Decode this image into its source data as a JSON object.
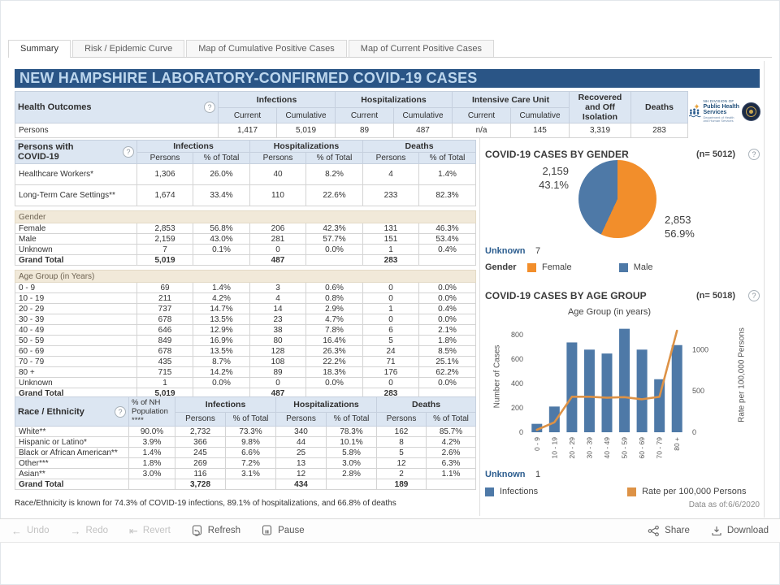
{
  "tabs": {
    "items": [
      {
        "label": "Summary"
      },
      {
        "label": "Risk / Epidemic Curve"
      },
      {
        "label": "Map of Cumulative Positive Cases"
      },
      {
        "label": "Map of Current Positive Cases"
      }
    ],
    "active_index": 0
  },
  "title": "NEW HAMPSHIRE LABORATORY-CONFIRMED COVID-19 CASES",
  "health_outcomes": {
    "title": "Health Outcomes",
    "groups": [
      "Infections",
      "Hospitalizations",
      "Intensive Care Unit"
    ],
    "current_label": "Current",
    "cumulative_label": "Cumulative",
    "recovered_label": "Recovered and Off Isolation",
    "deaths_label": "Deaths",
    "rows": [
      {
        "v": "row",
        "cells": [
          "Persons",
          "1,417",
          "5,019",
          "89",
          "487",
          "n/a",
          "145",
          "3,319",
          "283"
        ]
      }
    ]
  },
  "logo": {
    "line1": "NH DIVISION OF",
    "line2": "Public Health Services",
    "line3": "Department of Health and Human Services"
  },
  "persons_table": {
    "title": "Persons with COVID-19",
    "groups": [
      "Infections",
      "Hospitalizations",
      "Deaths"
    ],
    "persons_label": "Persons",
    "pct_label": "% of Total",
    "rows": [
      {
        "v": "tall",
        "cells": [
          "Healthcare Workers*",
          "1,306",
          "26.0%",
          "40",
          "8.2%",
          "4",
          "1.4%"
        ]
      },
      {
        "v": "tall",
        "cells": [
          "Long-Term Care Settings**",
          "1,674",
          "33.4%",
          "110",
          "22.6%",
          "233",
          "82.3%"
        ]
      },
      {
        "v": "gap",
        "cells": [
          ""
        ]
      },
      {
        "v": "band",
        "cells": [
          "Gender"
        ]
      },
      {
        "v": "row",
        "cells": [
          "Female",
          "2,853",
          "56.8%",
          "206",
          "42.3%",
          "131",
          "46.3%"
        ]
      },
      {
        "v": "row",
        "cells": [
          "Male",
          "2,159",
          "43.0%",
          "281",
          "57.7%",
          "151",
          "53.4%"
        ]
      },
      {
        "v": "row",
        "cells": [
          "Unknown",
          "7",
          "0.1%",
          "0",
          "0.0%",
          "1",
          "0.4%"
        ]
      },
      {
        "v": "total",
        "cells": [
          "Grand Total",
          "5,019",
          "",
          "487",
          "",
          "283",
          ""
        ]
      },
      {
        "v": "gap",
        "cells": [
          ""
        ]
      },
      {
        "v": "band",
        "cells": [
          "Age Group (in Years)"
        ]
      },
      {
        "v": "row",
        "cells": [
          "0 - 9",
          "69",
          "1.4%",
          "3",
          "0.6%",
          "0",
          "0.0%"
        ]
      },
      {
        "v": "row",
        "cells": [
          "10 - 19",
          "211",
          "4.2%",
          "4",
          "0.8%",
          "0",
          "0.0%"
        ]
      },
      {
        "v": "row",
        "cells": [
          "20 - 29",
          "737",
          "14.7%",
          "14",
          "2.9%",
          "1",
          "0.4%"
        ]
      },
      {
        "v": "row",
        "cells": [
          "30 - 39",
          "678",
          "13.5%",
          "23",
          "4.7%",
          "0",
          "0.0%"
        ]
      },
      {
        "v": "row",
        "cells": [
          "40 - 49",
          "646",
          "12.9%",
          "38",
          "7.8%",
          "6",
          "2.1%"
        ]
      },
      {
        "v": "row",
        "cells": [
          "50 - 59",
          "849",
          "16.9%",
          "80",
          "16.4%",
          "5",
          "1.8%"
        ]
      },
      {
        "v": "row",
        "cells": [
          "60 - 69",
          "678",
          "13.5%",
          "128",
          "26.3%",
          "24",
          "8.5%"
        ]
      },
      {
        "v": "row",
        "cells": [
          "70 - 79",
          "435",
          "8.7%",
          "108",
          "22.2%",
          "71",
          "25.1%"
        ]
      },
      {
        "v": "row",
        "cells": [
          "80 +",
          "715",
          "14.2%",
          "89",
          "18.3%",
          "176",
          "62.2%"
        ]
      },
      {
        "v": "row",
        "cells": [
          "Unknown",
          "1",
          "0.0%",
          "0",
          "0.0%",
          "0",
          "0.0%"
        ]
      },
      {
        "v": "total",
        "cells": [
          "Grand Total",
          "5,019",
          "",
          "487",
          "",
          "283",
          ""
        ]
      }
    ]
  },
  "race_table": {
    "title": "Race / Ethnicity",
    "pop_label": "% of NH Population ****",
    "groups": [
      "Infections",
      "Hospitalizations",
      "Deaths"
    ],
    "persons_label": "Persons",
    "pct_label": "% of Total",
    "rows": [
      {
        "v": "row",
        "cells": [
          "White**",
          "90.0%",
          "2,732",
          "73.3%",
          "340",
          "78.3%",
          "162",
          "85.7%"
        ]
      },
      {
        "v": "row",
        "cells": [
          "Hispanic or Latino*",
          "3.9%",
          "366",
          "9.8%",
          "44",
          "10.1%",
          "8",
          "4.2%"
        ]
      },
      {
        "v": "row",
        "cells": [
          "Black or African American**",
          "1.4%",
          "245",
          "6.6%",
          "25",
          "5.8%",
          "5",
          "2.6%"
        ]
      },
      {
        "v": "row",
        "cells": [
          "Other***",
          "1.8%",
          "269",
          "7.2%",
          "13",
          "3.0%",
          "12",
          "6.3%"
        ]
      },
      {
        "v": "row",
        "cells": [
          "Asian**",
          "3.0%",
          "116",
          "3.1%",
          "12",
          "2.8%",
          "2",
          "1.1%"
        ]
      },
      {
        "v": "total",
        "cells": [
          "Grand Total",
          "",
          "3,728",
          "",
          "434",
          "",
          "189",
          ""
        ]
      }
    ]
  },
  "footnote": "Race/Ethnicity is known for 74.3% of COVID-19 infections, 89.1% of hospitalizations, and 66.8% of deaths",
  "chart_data": [
    {
      "type": "pie",
      "title": "COVID-19 CASES BY GENDER",
      "n_label": "(n= 5012)",
      "slices": [
        {
          "label": "Female",
          "value": 2853,
          "value_label": "2,853",
          "pct_label": "56.9%",
          "color": "#f28e2b"
        },
        {
          "label": "Male",
          "value": 2159,
          "value_label": "2,159",
          "pct_label": "43.1%",
          "color": "#4e79a7"
        }
      ],
      "unknown_label": "Unknown",
      "unknown_value": "7",
      "legend_title": "Gender",
      "legend_position": "bottom"
    },
    {
      "type": "bar",
      "title": "COVID-19 CASES BY AGE GROUP",
      "n_label": "(n= 5018)",
      "xlabel": "Age Group (in years)",
      "ylabel_left": "Number of Cases",
      "ylabel_right": "Rate per 100,000 Persons",
      "categories": [
        "0 - 9",
        "10 - 19",
        "20 - 29",
        "30 - 39",
        "40 - 49",
        "50 - 59",
        "60 - 69",
        "70 - 79",
        "80 +"
      ],
      "series": [
        {
          "name": "Infections",
          "type": "bar",
          "axis": "left",
          "color": "#4e79a7",
          "values": [
            69,
            211,
            737,
            678,
            646,
            849,
            678,
            435,
            715
          ]
        },
        {
          "name": "Rate per 100,000 Persons",
          "type": "line",
          "axis": "right",
          "color": "#dd9246",
          "values": [
            30,
            120,
            430,
            430,
            420,
            425,
            400,
            430,
            1230
          ]
        }
      ],
      "ylim_left": [
        0,
        880
      ],
      "yticks_left": [
        0,
        200,
        400,
        600,
        800
      ],
      "ylim_right": [
        0,
        1300
      ],
      "yticks_right": [
        0,
        500,
        1000
      ],
      "grid": false,
      "legend_position": "bottom",
      "unknown_label": "Unknown",
      "unknown_value": "1",
      "data_as_of": "Data as of:6/6/2020"
    }
  ],
  "footer": {
    "undo": "Undo",
    "redo": "Redo",
    "revert": "Revert",
    "refresh": "Refresh",
    "pause": "Pause",
    "share": "Share",
    "download": "Download"
  },
  "colors": {
    "accent_blue": "#4e79a7",
    "accent_orange": "#f28e2b",
    "line_orange": "#dd9246",
    "title_bg": "#2a5586",
    "title_fg": "#bdd7ee",
    "header_bg": "#dce6f2",
    "band_bg": "#f1e9d9"
  }
}
